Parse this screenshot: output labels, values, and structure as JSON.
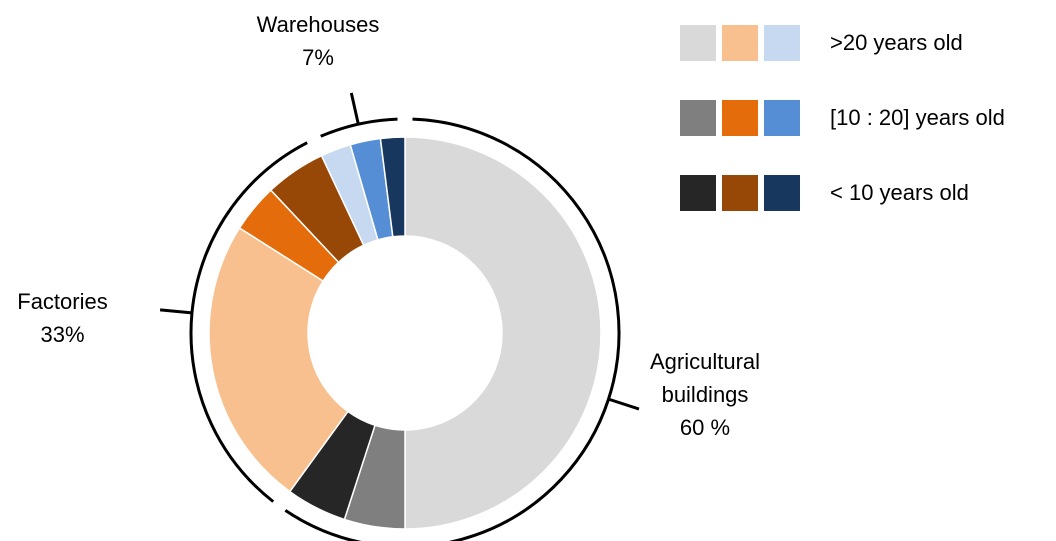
{
  "chart_data": {
    "type": "donut",
    "groups": [
      {
        "name": "Agricultural buildings",
        "value": 60,
        "value_label": "60 %"
      },
      {
        "name": "Factories",
        "value": 33,
        "value_label": "33%"
      },
      {
        "name": "Warehouses",
        "value": 7,
        "value_label": "7%"
      }
    ],
    "series": [
      {
        "name": ">20 years old",
        "colors": [
          "#d9d9d9",
          "#f9c08f",
          "#c6d9f1"
        ],
        "values": [
          50,
          24,
          2.5
        ]
      },
      {
        "name": "[10 : 20] years old",
        "colors": [
          "#7f7f7f",
          "#e46c0a",
          "#558ed5"
        ],
        "values": [
          5,
          4,
          2.5
        ]
      },
      {
        "name": "< 10  years old",
        "colors": [
          "#262626",
          "#974806",
          "#17375e"
        ],
        "values": [
          5,
          5,
          2
        ]
      }
    ]
  }
}
